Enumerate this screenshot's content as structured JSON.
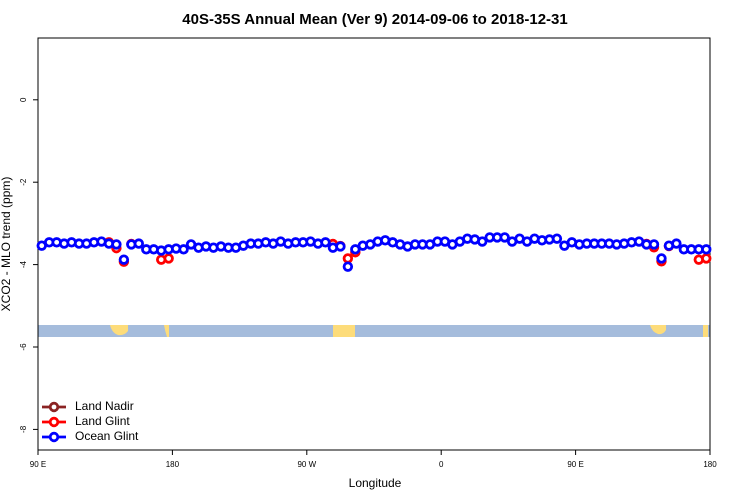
{
  "chart_data": {
    "type": "scatter",
    "title": "40S-35S Annual Mean (Ver 9)   2014-09-06 to 2018-12-31",
    "xlabel": "Longitude",
    "ylabel": "XCO2 - MLO trend (ppm)",
    "xlim": [
      90,
      540
    ],
    "ylim": [
      -8.5,
      1.5
    ],
    "xticks": [
      {
        "value": 90,
        "label": "90 E"
      },
      180,
      {
        "value": 270,
        "label": "90 W"
      },
      {
        "value": 360,
        "label": "0"
      },
      {
        "value": 450,
        "label": "90 E"
      },
      {
        "value": 540,
        "label": "180"
      }
    ],
    "yticks": [
      0,
      -2,
      -4,
      -6,
      -8
    ],
    "legend": "bottom-left",
    "x": [
      92.5,
      97.5,
      102.5,
      107.5,
      112.5,
      117.5,
      122.5,
      127.5,
      132.5,
      137.5,
      142.5,
      147.5,
      152.5,
      157.5,
      162.5,
      167.5,
      172.5,
      177.5,
      182.5,
      187.5,
      192.5,
      197.5,
      202.5,
      207.5,
      212.5,
      217.5,
      222.5,
      227.5,
      232.5,
      237.5,
      242.5,
      247.5,
      252.5,
      257.5,
      262.5,
      267.5,
      272.5,
      277.5,
      282.5,
      287.5,
      292.5,
      297.5,
      302.5,
      307.5,
      312.5,
      317.5,
      322.5,
      327.5,
      332.5,
      337.5,
      342.5,
      347.5,
      352.5,
      357.5,
      362.5,
      367.5,
      372.5,
      377.5,
      382.5,
      387.5,
      392.5,
      397.5,
      402.5,
      407.5,
      412.5,
      417.5,
      422.5,
      427.5,
      432.5,
      437.5,
      442.5,
      447.5,
      452.5,
      457.5,
      462.5,
      467.5,
      472.5,
      477.5,
      482.5,
      487.5,
      492.5,
      497.5,
      502.5,
      507.5,
      512.5,
      517.5,
      522.5,
      527.5,
      532.5,
      537.5
    ],
    "series": [
      {
        "name": "Land Nadir",
        "color": "#8b2323",
        "values": [
          null,
          null,
          null,
          null,
          null,
          null,
          null,
          null,
          null,
          null,
          null,
          null,
          null,
          null,
          null,
          null,
          null,
          null,
          null,
          null,
          null,
          null,
          null,
          null,
          null,
          null,
          null,
          null,
          null,
          null,
          null,
          null,
          null,
          null,
          null,
          null,
          null,
          null,
          null,
          null,
          null,
          null,
          null,
          null,
          null,
          null,
          null,
          null,
          null,
          null,
          null,
          null,
          null,
          null,
          null,
          null,
          null,
          null,
          null,
          null,
          null,
          null,
          null,
          null,
          null,
          null,
          null,
          null,
          null,
          null,
          null,
          null,
          null,
          null,
          null,
          null,
          null,
          null,
          null,
          null,
          null,
          null,
          null,
          null,
          null,
          null,
          null,
          null,
          null,
          null
        ]
      },
      {
        "name": "Land Glint",
        "color": "#ff0000",
        "values": [
          null,
          null,
          null,
          null,
          null,
          null,
          null,
          null,
          null,
          -3.46,
          -3.6,
          -3.93,
          -3.5,
          null,
          null,
          null,
          -3.88,
          -3.85,
          null,
          null,
          null,
          null,
          null,
          null,
          null,
          null,
          null,
          null,
          null,
          null,
          null,
          null,
          null,
          null,
          null,
          null,
          null,
          null,
          null,
          -3.5,
          -3.55,
          -3.85,
          -3.7,
          null,
          null,
          null,
          null,
          null,
          null,
          null,
          null,
          null,
          null,
          null,
          null,
          null,
          null,
          null,
          null,
          null,
          null,
          null,
          null,
          null,
          null,
          null,
          null,
          null,
          null,
          null,
          null,
          null,
          null,
          null,
          null,
          null,
          null,
          null,
          null,
          null,
          null,
          -3.5,
          -3.58,
          -3.92,
          -3.55,
          null,
          null,
          null,
          -3.88,
          -3.85
        ]
      },
      {
        "name": "Ocean Glint",
        "color": "#0000ff",
        "values": [
          -3.54,
          -3.46,
          -3.46,
          -3.49,
          -3.46,
          -3.49,
          -3.49,
          -3.46,
          -3.44,
          -3.49,
          -3.51,
          -3.88,
          -3.51,
          -3.49,
          -3.63,
          -3.63,
          -3.66,
          -3.63,
          -3.61,
          -3.63,
          -3.51,
          -3.59,
          -3.56,
          -3.59,
          -3.56,
          -3.59,
          -3.59,
          -3.54,
          -3.49,
          -3.49,
          -3.46,
          -3.49,
          -3.44,
          -3.49,
          -3.46,
          -3.46,
          -3.44,
          -3.49,
          -3.46,
          -3.59,
          -3.56,
          -4.05,
          -3.63,
          -3.54,
          -3.51,
          -3.44,
          -3.41,
          -3.46,
          -3.51,
          -3.56,
          -3.51,
          -3.51,
          -3.51,
          -3.44,
          -3.44,
          -3.51,
          -3.44,
          -3.37,
          -3.39,
          -3.44,
          -3.34,
          -3.34,
          -3.34,
          -3.44,
          -3.37,
          -3.44,
          -3.37,
          -3.41,
          -3.39,
          -3.37,
          -3.54,
          -3.46,
          -3.51,
          -3.49,
          -3.49,
          -3.49,
          -3.49,
          -3.51,
          -3.49,
          -3.46,
          -3.44,
          -3.51,
          -3.51,
          -3.85,
          -3.54,
          -3.49,
          -3.63,
          -3.63,
          -3.63,
          -3.63
        ]
      }
    ]
  }
}
